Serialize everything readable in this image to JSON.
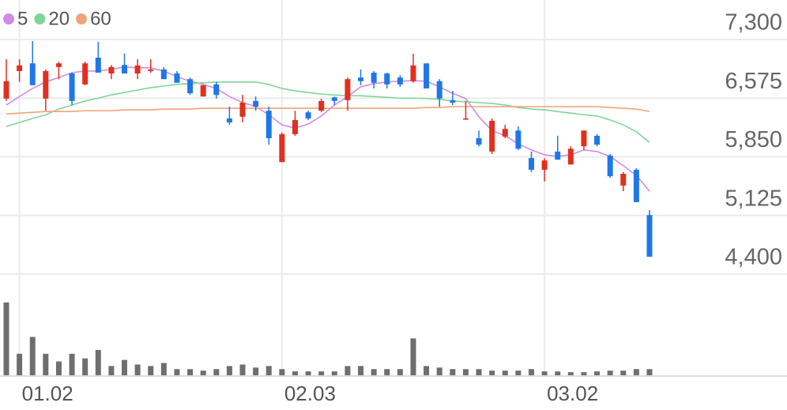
{
  "chart_data": {
    "type": "candlestick",
    "categories": [
      null,
      "01.02",
      null,
      null,
      null,
      null,
      null,
      null,
      null,
      null,
      null,
      null,
      null,
      null,
      null,
      null,
      null,
      null,
      null,
      null,
      null,
      "02.03",
      null,
      null,
      null,
      null,
      null,
      null,
      null,
      null,
      null,
      null,
      null,
      null,
      null,
      null,
      null,
      null,
      null,
      null,
      null,
      "03.02",
      null,
      null,
      null,
      null,
      null,
      null,
      null,
      null
    ],
    "open": [
      6570,
      6910,
      7005,
      6570,
      6960,
      6880,
      6745,
      7075,
      6880,
      6985,
      6880,
      6910,
      6930,
      6880,
      6810,
      6595,
      6745,
      6325,
      6345,
      6540,
      6420,
      5785,
      6130,
      6400,
      6420,
      6585,
      6550,
      6830,
      6890,
      6880,
      6830,
      6785,
      7005,
      6785,
      6550,
      6320,
      6080,
      5915,
      6100,
      6175,
      5835,
      5690,
      5915,
      5755,
      5980,
      6110,
      5865,
      5495,
      5690,
      5130
    ],
    "high": [
      7055,
      7055,
      7280,
      6930,
      7025,
      6890,
      7025,
      7270,
      6985,
      7125,
      7055,
      7055,
      6960,
      6910,
      6830,
      6735,
      6775,
      6470,
      6615,
      6595,
      6470,
      6150,
      6420,
      6420,
      6570,
      6595,
      6830,
      6930,
      6910,
      6890,
      6860,
      7125,
      7005,
      6810,
      6665,
      6540,
      6175,
      6325,
      6245,
      6225,
      5915,
      5835,
      6110,
      5980,
      6175,
      6130,
      5885,
      5660,
      5710,
      5190
    ],
    "low": [
      6540,
      6775,
      6735,
      6420,
      6810,
      6490,
      6735,
      6890,
      6810,
      6880,
      6810,
      6890,
      6810,
      6765,
      6615,
      6595,
      6570,
      6245,
      6275,
      6420,
      6000,
      5785,
      6110,
      6305,
      6400,
      6490,
      6420,
      6735,
      6695,
      6695,
      6715,
      6765,
      6695,
      6470,
      6490,
      6305,
      5980,
      5885,
      6080,
      5935,
      5660,
      5545,
      5815,
      5755,
      5935,
      5980,
      5590,
      5425,
      5290,
      4615
    ],
    "close": [
      6785,
      6980,
      6735,
      6910,
      7005,
      6540,
      7005,
      6890,
      6960,
      6880,
      6980,
      6930,
      6810,
      6765,
      6635,
      6735,
      6615,
      6275,
      6520,
      6470,
      6080,
      6130,
      6305,
      6325,
      6540,
      6540,
      6810,
      6785,
      6765,
      6745,
      6745,
      6980,
      6695,
      6570,
      6520,
      6325,
      6000,
      6295,
      6195,
      5950,
      5690,
      5805,
      5815,
      5950,
      6175,
      6000,
      5610,
      5640,
      5290,
      4615
    ],
    "up_color": "#e0301e",
    "down_color": "#1e78e6",
    "series": [
      {
        "name": "5",
        "color": "#d28be6",
        "values": [
          6490,
          6595,
          6695,
          6775,
          6830,
          6890,
          6910,
          6910,
          6930,
          6960,
          6950,
          6950,
          6910,
          6840,
          6785,
          6745,
          6695,
          6595,
          6520,
          6470,
          6370,
          6245,
          6205,
          6255,
          6355,
          6490,
          6595,
          6715,
          6755,
          6775,
          6785,
          6790,
          6785,
          6715,
          6635,
          6570,
          6345,
          6175,
          6110,
          6010,
          5935,
          5875,
          5855,
          5875,
          5935,
          5915,
          5855,
          5740,
          5620,
          5425
        ]
      },
      {
        "name": "20",
        "color": "#7fd49a",
        "values": [
          6225,
          6275,
          6325,
          6370,
          6440,
          6490,
          6540,
          6575,
          6615,
          6645,
          6675,
          6705,
          6725,
          6745,
          6755,
          6765,
          6775,
          6775,
          6775,
          6775,
          6745,
          6695,
          6665,
          6645,
          6625,
          6615,
          6605,
          6605,
          6595,
          6585,
          6575,
          6575,
          6570,
          6560,
          6540,
          6530,
          6520,
          6510,
          6490,
          6460,
          6440,
          6430,
          6410,
          6390,
          6370,
          6355,
          6305,
          6245,
          6160,
          6030
        ]
      },
      {
        "name": "60",
        "color": "#f2a27a",
        "values": [
          6380,
          6390,
          6400,
          6410,
          6410,
          6410,
          6420,
          6420,
          6420,
          6430,
          6430,
          6430,
          6440,
          6440,
          6440,
          6450,
          6450,
          6450,
          6450,
          6450,
          6450,
          6450,
          6450,
          6450,
          6450,
          6450,
          6450,
          6450,
          6450,
          6450,
          6450,
          6450,
          6460,
          6460,
          6470,
          6470,
          6470,
          6470,
          6470,
          6470,
          6470,
          6470,
          6470,
          6470,
          6470,
          6470,
          6460,
          6450,
          6440,
          6410
        ]
      }
    ],
    "ylim": [
      4400,
      7300
    ],
    "yticks": [
      {
        "value": 7300,
        "label": "7,300"
      },
      {
        "value": 6575,
        "label": "6,575"
      },
      {
        "value": 5850,
        "label": "5,850"
      },
      {
        "value": 5125,
        "label": "5,125"
      },
      {
        "value": 4400,
        "label": "4,400"
      }
    ],
    "grid": true,
    "volume": {
      "color": "#6e6e6e",
      "ylim": [
        0,
        100
      ],
      "values": [
        95,
        28,
        50,
        28,
        18,
        28,
        22,
        33,
        12,
        20,
        14,
        12,
        16,
        8,
        8,
        6,
        8,
        12,
        14,
        10,
        12,
        8,
        5,
        5,
        5,
        5,
        12,
        12,
        8,
        8,
        8,
        48,
        12,
        10,
        8,
        8,
        8,
        6,
        6,
        6,
        8,
        5,
        5,
        4,
        4,
        5,
        6,
        6,
        8,
        8
      ]
    }
  }
}
